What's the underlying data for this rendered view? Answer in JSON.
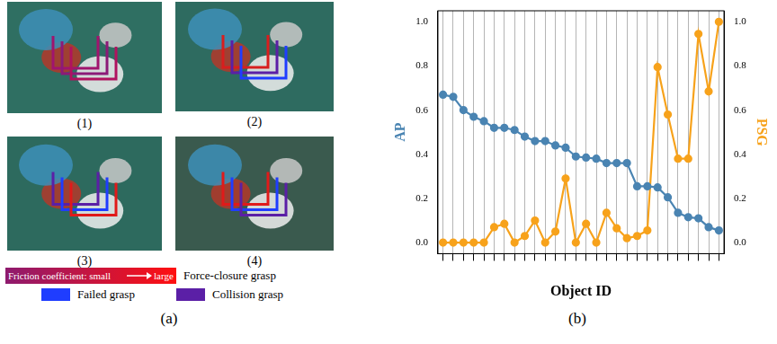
{
  "chart_data": {
    "type": "line",
    "x_label": "Object ID",
    "categories": [
      null,
      null,
      null,
      null,
      null,
      null,
      null,
      null,
      null,
      null,
      null,
      null,
      null,
      null,
      null,
      null,
      null,
      null,
      null,
      null,
      null,
      null,
      null,
      null,
      null,
      null,
      null,
      null
    ],
    "series": [
      {
        "name": "AP",
        "color": "#4a84b2",
        "axis": "y",
        "marker": "circle",
        "line_style": "solid",
        "values": [
          0.67,
          0.66,
          0.6,
          0.57,
          0.55,
          0.52,
          0.52,
          0.51,
          0.48,
          0.46,
          0.46,
          0.44,
          0.43,
          0.39,
          0.385,
          0.38,
          0.36,
          0.36,
          0.36,
          0.255,
          0.255,
          0.25,
          0.205,
          0.135,
          0.115,
          0.11,
          0.07,
          0.055
        ]
      },
      {
        "name": "PSG",
        "color": "#f7a21b",
        "axis": "y2",
        "marker": "circle",
        "line_style": "solid",
        "values": [
          0,
          0,
          0,
          0,
          0,
          0.07,
          0.085,
          0,
          0.03,
          0.1,
          0,
          0.05,
          0.29,
          0,
          0.085,
          0,
          0.135,
          0.065,
          0.02,
          0.03,
          0.055,
          0.795,
          0.58,
          0.38,
          0.38,
          0.945,
          0.685,
          1.0
        ]
      }
    ],
    "ylim": [
      -0.05,
      1.05
    ],
    "yticks": [
      {
        "value": 0,
        "label": "0.0"
      },
      0.2,
      0.4,
      0.6,
      0.8,
      {
        "value": 1,
        "label": "1.0"
      }
    ],
    "y2lim": [
      -0.05,
      1.05
    ],
    "y2ticks": [
      {
        "value": 0,
        "label": "0.0"
      },
      0.2,
      0.4,
      0.6,
      0.8,
      {
        "value": 1,
        "label": "1.0"
      }
    ],
    "grid": "x"
  },
  "panel_a": {
    "images": [
      "(1)",
      "(2)",
      "(3)",
      "(4)"
    ],
    "legend": {
      "gradient_start": "Friction coefficient: small",
      "gradient_end": "large",
      "gradient_label": "Force-closure grasp",
      "items": [
        {
          "label": "Failed grasp",
          "color": "#1f3dff"
        },
        {
          "label": "Collision grasp",
          "color": "#5b1fa6"
        }
      ]
    },
    "caption": "(a)"
  },
  "panel_b": {
    "caption": "(b)"
  }
}
